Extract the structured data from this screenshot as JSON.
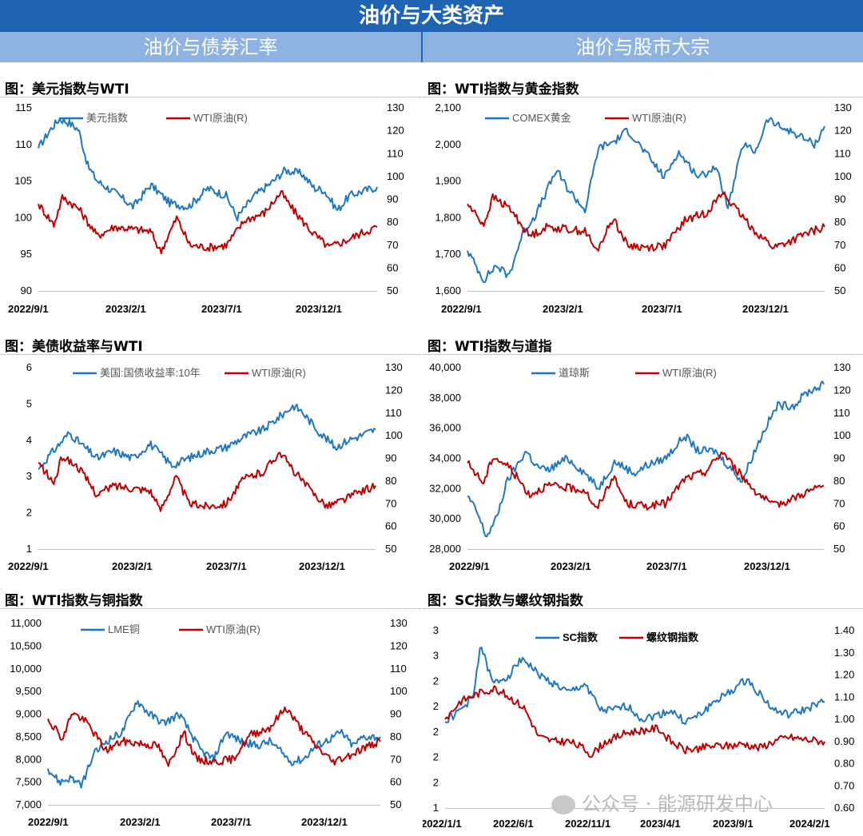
{
  "header": {
    "title": "油价与大类资产",
    "left_section": "油价与债券汇率",
    "right_section": "油价与股市大宗"
  },
  "watermark": "公众号 · 能源研发中心",
  "colors": {
    "blue": "#1f77c4",
    "red": "#c00000",
    "banner": "#1f63b5",
    "subbanner": "#8db3e2"
  },
  "chart_data": [
    {
      "type": "line",
      "title": "图：美元指数与WTI",
      "x_tick_labels": [
        "2022/9/1",
        "2023/2/1",
        "2023/7/1",
        "2023/12/1"
      ],
      "x_range": [
        "2022-09-01",
        "2024-02-29"
      ],
      "ylim": [
        90,
        115
      ],
      "y_ticks": [
        "90",
        "95",
        "100",
        "105",
        "110",
        "115"
      ],
      "y2lim": [
        50,
        130
      ],
      "y2_ticks": [
        "50",
        "60",
        "70",
        "80",
        "90",
        "100",
        "110",
        "120",
        "130"
      ],
      "series": [
        {
          "name": "美元指数",
          "axis": "left",
          "color": "#1f77c4",
          "x": [
            "2022-09-01",
            "2022-09-20",
            "2022-10-05",
            "2022-10-20",
            "2022-11-05",
            "2022-11-20",
            "2022-12-05",
            "2023-01-01",
            "2023-02-01",
            "2023-03-01",
            "2023-04-01",
            "2023-05-01",
            "2023-06-01",
            "2023-07-01",
            "2023-07-18",
            "2023-08-15",
            "2023-09-15",
            "2023-10-03",
            "2023-10-31",
            "2023-11-20",
            "2023-12-05",
            "2023-12-27",
            "2024-01-15",
            "2024-02-01",
            "2024-02-29"
          ],
          "y": [
            109.5,
            112,
            113.5,
            113,
            112,
            107,
            105,
            103.5,
            101.5,
            104.5,
            102,
            101.5,
            104,
            103,
            100,
            103,
            105,
            106.5,
            106,
            104,
            103.8,
            101,
            103,
            103.5,
            104.2
          ]
        },
        {
          "name": "WTI原油(R)",
          "axis": "right",
          "color": "#c00000",
          "x": [
            "2022-09-01",
            "2022-09-26",
            "2022-10-10",
            "2022-11-05",
            "2022-12-05",
            "2023-01-01",
            "2023-02-01",
            "2023-03-01",
            "2023-03-17",
            "2023-04-12",
            "2023-05-03",
            "2023-06-01",
            "2023-07-01",
            "2023-07-31",
            "2023-08-31",
            "2023-09-27",
            "2023-10-15",
            "2023-11-15",
            "2023-12-13",
            "2024-01-10",
            "2024-02-01",
            "2024-02-29"
          ],
          "y": [
            88,
            79,
            91,
            86,
            74,
            78,
            77,
            76,
            67,
            82,
            70,
            69,
            70,
            81,
            84,
            93,
            86,
            76,
            69,
            72,
            75,
            78
          ]
        }
      ]
    },
    {
      "type": "line",
      "title": "图：WTI指数与黄金指数",
      "x_tick_labels": [
        "2022/9/1",
        "2023/2/1",
        "2023/7/1",
        "2023/12/1"
      ],
      "x_range": [
        "2022-09-01",
        "2024-02-29"
      ],
      "ylim": [
        1600,
        2100
      ],
      "y_ticks": [
        "1,600",
        "1,700",
        "1,800",
        "1,900",
        "2,000",
        "2,100"
      ],
      "y2lim": [
        50,
        130
      ],
      "y2_ticks": [
        "50",
        "60",
        "70",
        "80",
        "90",
        "100",
        "110",
        "120",
        "130"
      ],
      "series": [
        {
          "name": "COMEX黄金",
          "axis": "left",
          "color": "#1f77c4",
          "x": [
            "2022-09-01",
            "2022-09-26",
            "2022-10-15",
            "2022-11-03",
            "2022-11-25",
            "2022-12-15",
            "2023-01-15",
            "2023-02-01",
            "2023-02-28",
            "2023-03-20",
            "2023-04-15",
            "2023-05-04",
            "2023-06-01",
            "2023-06-29",
            "2023-07-20",
            "2023-08-21",
            "2023-09-15",
            "2023-10-05",
            "2023-10-27",
            "2023-11-15",
            "2023-12-04",
            "2023-12-20",
            "2024-01-15",
            "2024-02-14",
            "2024-02-29"
          ],
          "y": [
            1710,
            1630,
            1670,
            1640,
            1760,
            1810,
            1930,
            1880,
            1820,
            1990,
            2010,
            2040,
            1975,
            1910,
            1980,
            1910,
            1940,
            1830,
            2000,
            1980,
            2070,
            2050,
            2030,
            2000,
            2050
          ]
        },
        {
          "name": "WTI原油(R)",
          "axis": "right",
          "color": "#c00000",
          "x": [
            "2022-09-01",
            "2022-09-26",
            "2022-10-10",
            "2022-11-05",
            "2022-12-05",
            "2023-01-01",
            "2023-02-01",
            "2023-03-01",
            "2023-03-17",
            "2023-04-12",
            "2023-05-03",
            "2023-06-01",
            "2023-07-01",
            "2023-07-31",
            "2023-08-31",
            "2023-09-27",
            "2023-10-15",
            "2023-11-15",
            "2023-12-13",
            "2024-01-10",
            "2024-02-01",
            "2024-02-29"
          ],
          "y": [
            88,
            79,
            91,
            86,
            74,
            78,
            77,
            76,
            67,
            82,
            70,
            69,
            70,
            81,
            84,
            93,
            86,
            76,
            69,
            72,
            75,
            78
          ]
        }
      ]
    },
    {
      "type": "line",
      "title": "图：美债收益率与WTI",
      "x_tick_labels": [
        "2022/9/1",
        "2023/2/1",
        "2023/7/1",
        "2023/12/1"
      ],
      "x_range": [
        "2022-09-01",
        "2024-02-29"
      ],
      "ylim": [
        1,
        6
      ],
      "y_ticks": [
        "1",
        "2",
        "3",
        "4",
        "5",
        "6"
      ],
      "y2lim": [
        50,
        130
      ],
      "y2_ticks": [
        "50",
        "60",
        "70",
        "80",
        "90",
        "100",
        "110",
        "120",
        "130"
      ],
      "series": [
        {
          "name": "美国:国债收益率:10年",
          "axis": "left",
          "color": "#1f77c4",
          "x": [
            "2022-09-01",
            "2022-09-20",
            "2022-10-21",
            "2022-11-15",
            "2022-12-05",
            "2023-01-01",
            "2023-02-01",
            "2023-03-01",
            "2023-04-06",
            "2023-05-01",
            "2023-06-01",
            "2023-07-01",
            "2023-08-01",
            "2023-09-01",
            "2023-10-19",
            "2023-11-01",
            "2023-12-01",
            "2023-12-27",
            "2024-01-15",
            "2024-02-01",
            "2024-02-29"
          ],
          "y": [
            3.2,
            3.6,
            4.2,
            3.8,
            3.5,
            3.7,
            3.5,
            3.9,
            3.3,
            3.5,
            3.7,
            3.8,
            4.1,
            4.3,
            4.95,
            4.8,
            4.2,
            3.8,
            4.0,
            4.1,
            4.3
          ]
        },
        {
          "name": "WTI原油(R)",
          "axis": "right",
          "color": "#c00000",
          "x": [
            "2022-09-01",
            "2022-09-26",
            "2022-10-10",
            "2022-11-05",
            "2022-12-05",
            "2023-01-01",
            "2023-02-01",
            "2023-03-01",
            "2023-03-17",
            "2023-04-12",
            "2023-05-03",
            "2023-06-01",
            "2023-07-01",
            "2023-07-31",
            "2023-08-31",
            "2023-09-27",
            "2023-10-15",
            "2023-11-15",
            "2023-12-13",
            "2024-01-10",
            "2024-02-01",
            "2024-02-29"
          ],
          "y": [
            88,
            79,
            91,
            86,
            74,
            78,
            77,
            76,
            67,
            82,
            70,
            69,
            70,
            81,
            84,
            93,
            86,
            76,
            69,
            72,
            75,
            78
          ]
        }
      ]
    },
    {
      "type": "line",
      "title": "图：WTI指数与道指",
      "x_tick_labels": [
        "2022/9/1",
        "2023/2/1",
        "2023/7/1",
        "2023/12/1"
      ],
      "x_range": [
        "2022-09-01",
        "2024-02-29"
      ],
      "ylim": [
        28000,
        40000
      ],
      "y_ticks": [
        "28,000",
        "30,000",
        "32,000",
        "34,000",
        "36,000",
        "38,000",
        "40,000"
      ],
      "y2lim": [
        50,
        130
      ],
      "y2_ticks": [
        "50",
        "60",
        "70",
        "80",
        "90",
        "100",
        "110",
        "120",
        "130"
      ],
      "series": [
        {
          "name": "道琼斯",
          "axis": "left",
          "color": "#1f77c4",
          "x": [
            "2022-09-01",
            "2022-09-15",
            "2022-09-30",
            "2022-10-15",
            "2022-11-01",
            "2022-11-30",
            "2022-12-15",
            "2023-01-01",
            "2023-02-01",
            "2023-03-01",
            "2023-03-20",
            "2023-04-15",
            "2023-05-15",
            "2023-06-01",
            "2023-07-01",
            "2023-07-31",
            "2023-08-20",
            "2023-09-15",
            "2023-10-27",
            "2023-11-10",
            "2023-12-01",
            "2023-12-20",
            "2024-01-15",
            "2024-02-01",
            "2024-02-29"
          ],
          "y": [
            31500,
            30500,
            28800,
            30000,
            32500,
            34500,
            33500,
            33200,
            34000,
            33000,
            32000,
            33800,
            33000,
            33500,
            34000,
            35500,
            34500,
            34500,
            32500,
            34000,
            36000,
            37500,
            37500,
            38300,
            38900
          ]
        },
        {
          "name": "WTI原油(R)",
          "axis": "right",
          "color": "#c00000",
          "x": [
            "2022-09-01",
            "2022-09-26",
            "2022-10-10",
            "2022-11-05",
            "2022-12-05",
            "2023-01-01",
            "2023-02-01",
            "2023-03-01",
            "2023-03-17",
            "2023-04-12",
            "2023-05-03",
            "2023-06-01",
            "2023-07-01",
            "2023-07-31",
            "2023-08-31",
            "2023-09-27",
            "2023-10-15",
            "2023-11-15",
            "2023-12-13",
            "2024-01-10",
            "2024-02-01",
            "2024-02-29"
          ],
          "y": [
            88,
            79,
            91,
            86,
            74,
            78,
            77,
            76,
            67,
            82,
            70,
            69,
            70,
            81,
            84,
            93,
            86,
            76,
            69,
            72,
            75,
            78
          ]
        }
      ]
    },
    {
      "type": "line",
      "title": "图：WTI指数与铜指数",
      "x_tick_labels": [
        "2022/9/1",
        "2023/2/1",
        "2023/7/1",
        "2023/12/1"
      ],
      "x_range": [
        "2022-09-01",
        "2024-02-29"
      ],
      "ylim": [
        7000,
        11000
      ],
      "y_ticks": [
        "7,000",
        "7,500",
        "8,000",
        "8,500",
        "9,000",
        "9,500",
        "10,000",
        "10,500",
        "11,000"
      ],
      "y2lim": [
        50,
        130
      ],
      "y2_ticks": [
        "50",
        "60",
        "70",
        "80",
        "90",
        "100",
        "110",
        "120",
        "130"
      ],
      "series": [
        {
          "name": "LME铜",
          "axis": "left",
          "color": "#1f77c4",
          "x": [
            "2022-09-01",
            "2022-09-20",
            "2022-10-10",
            "2022-10-25",
            "2022-11-15",
            "2022-12-05",
            "2023-01-01",
            "2023-01-25",
            "2023-02-15",
            "2023-03-10",
            "2023-04-05",
            "2023-05-10",
            "2023-05-31",
            "2023-06-20",
            "2023-07-15",
            "2023-08-10",
            "2023-09-01",
            "2023-10-05",
            "2023-10-25",
            "2023-11-15",
            "2023-12-01",
            "2023-12-27",
            "2024-01-15",
            "2024-02-01",
            "2024-02-29"
          ],
          "y": [
            7800,
            7500,
            7600,
            7400,
            8100,
            8400,
            8600,
            9300,
            9000,
            8800,
            9000,
            8200,
            8000,
            8600,
            8400,
            8300,
            8400,
            7950,
            8000,
            8300,
            8400,
            8600,
            8300,
            8500,
            8500
          ]
        },
        {
          "name": "WTI原油(R)",
          "axis": "right",
          "color": "#c00000",
          "x": [
            "2022-09-01",
            "2022-09-26",
            "2022-10-10",
            "2022-11-05",
            "2022-12-05",
            "2023-01-01",
            "2023-02-01",
            "2023-03-01",
            "2023-03-17",
            "2023-04-12",
            "2023-05-03",
            "2023-06-01",
            "2023-07-01",
            "2023-07-31",
            "2023-08-31",
            "2023-09-27",
            "2023-10-15",
            "2023-11-15",
            "2023-12-13",
            "2024-01-10",
            "2024-02-01",
            "2024-02-29"
          ],
          "y": [
            88,
            79,
            91,
            86,
            74,
            78,
            77,
            76,
            67,
            82,
            70,
            69,
            70,
            81,
            84,
            93,
            86,
            76,
            69,
            72,
            75,
            78
          ]
        }
      ]
    },
    {
      "type": "line",
      "title": "图：SC指数与螺纹钢指数",
      "x_tick_labels": [
        "2022/1/1",
        "2022/6/1",
        "2022/11/1",
        "2023/4/1",
        "2023/9/1",
        "2024/2/1"
      ],
      "x_range": [
        "2022-01-01",
        "2024-02-29"
      ],
      "ylim": [
        1,
        3
      ],
      "y_ticks": [
        "1",
        "2",
        "2",
        "2",
        "2",
        "2",
        "3",
        "3"
      ],
      "y2lim": [
        0.6,
        1.4
      ],
      "y2_ticks": [
        "0.60",
        "0.70",
        "0.80",
        "0.90",
        "1.00",
        "1.10",
        "1.20",
        "1.30",
        "1.40"
      ],
      "series": [
        {
          "name": "SC指数",
          "axis": "left",
          "color": "#1f77c4",
          "x": [
            "2022-01-01",
            "2022-02-01",
            "2022-03-01",
            "2022-03-15",
            "2022-04-10",
            "2022-05-15",
            "2022-06-10",
            "2022-07-15",
            "2022-08-15",
            "2022-09-15",
            "2022-10-20",
            "2022-11-20",
            "2022-12-15",
            "2023-01-15",
            "2023-02-15",
            "2023-03-20",
            "2023-04-15",
            "2023-05-15",
            "2023-06-15",
            "2023-07-15",
            "2023-08-15",
            "2023-09-20",
            "2023-10-15",
            "2023-11-15",
            "2023-12-15",
            "2024-01-15",
            "2024-02-29"
          ],
          "y": [
            1.97,
            2.1,
            2.25,
            2.85,
            2.4,
            2.5,
            2.7,
            2.5,
            2.4,
            2.3,
            2.4,
            2.1,
            2.1,
            2.15,
            2.0,
            2.05,
            2.1,
            1.97,
            2.05,
            2.2,
            2.3,
            2.45,
            2.3,
            2.1,
            2.05,
            2.1,
            2.2
          ]
        },
        {
          "name": "螺纹钢指数",
          "axis": "right",
          "color": "#c00000",
          "x": [
            "2022-01-01",
            "2022-02-01",
            "2022-03-15",
            "2022-04-15",
            "2022-05-15",
            "2022-06-15",
            "2022-07-15",
            "2022-08-15",
            "2022-09-15",
            "2022-10-15",
            "2022-11-01",
            "2022-12-01",
            "2023-01-15",
            "2023-02-15",
            "2023-03-20",
            "2023-04-15",
            "2023-05-15",
            "2023-06-15",
            "2023-07-15",
            "2023-08-15",
            "2023-09-15",
            "2023-10-15",
            "2023-11-15",
            "2023-12-15",
            "2024-01-15",
            "2024-02-29"
          ],
          "y": [
            1.0,
            1.08,
            1.12,
            1.14,
            1.1,
            1.05,
            0.92,
            0.9,
            0.9,
            0.87,
            0.84,
            0.9,
            0.94,
            0.95,
            0.96,
            0.9,
            0.86,
            0.87,
            0.88,
            0.88,
            0.89,
            0.87,
            0.9,
            0.92,
            0.91,
            0.9
          ]
        }
      ]
    }
  ]
}
